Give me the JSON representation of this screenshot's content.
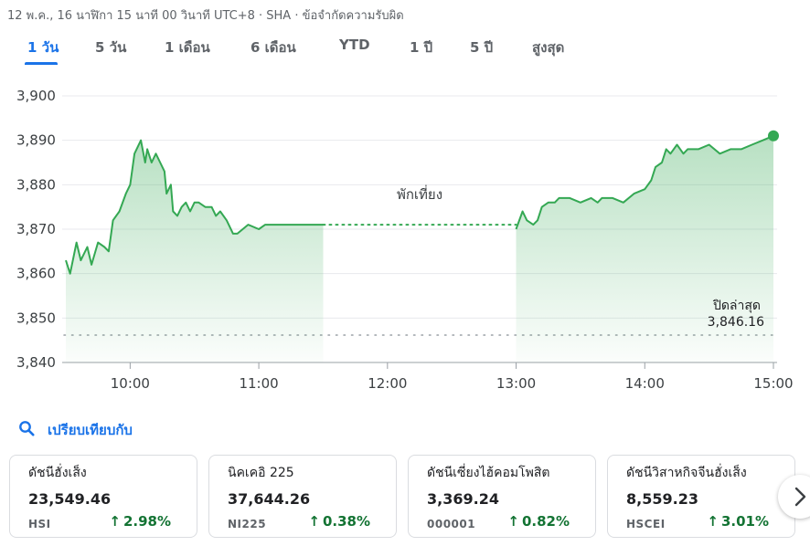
{
  "header": {
    "meta": "12 พ.ค., 16 นาฬิกา 15 นาที 00 วินาที UTC+8 · SHA · ข้อจำกัดความรับผิด"
  },
  "tabs": [
    {
      "label": "1 วัน",
      "active": true
    },
    {
      "label": "5 วัน",
      "active": false
    },
    {
      "label": "1 เดือน",
      "active": false
    },
    {
      "label": "6 เดือน",
      "active": false
    },
    {
      "label": "YTD",
      "active": false
    },
    {
      "label": "1 ปี",
      "active": false
    },
    {
      "label": "5 ปี",
      "active": false
    },
    {
      "label": "สูงสุด",
      "active": false
    }
  ],
  "chart_data": {
    "type": "area",
    "y_ticks": [
      "3,900",
      "3,890",
      "3,880",
      "3,870",
      "3,860",
      "3,850",
      "3,840"
    ],
    "x_ticks": [
      "10:00",
      "11:00",
      "12:00",
      "13:00",
      "14:00",
      "15:00"
    ],
    "ylim": [
      3840,
      3900
    ],
    "xlim": [
      "09:30",
      "15:00"
    ],
    "grid": true,
    "break_label": "พักเที่ยง",
    "break_range": [
      "11:30",
      "13:00"
    ],
    "previous_close": {
      "label": "ปิดล่าสุด",
      "value": "3,846.16",
      "y": 3846.16
    },
    "line_color": "#34a853",
    "series": [
      {
        "x": [
          "09:30",
          "09:32",
          "09:35",
          "09:37",
          "09:40",
          "09:42",
          "09:45",
          "09:48",
          "09:50",
          "09:52",
          "09:55",
          "09:58",
          "10:00",
          "10:02",
          "10:05",
          "10:07",
          "10:08",
          "10:10",
          "10:12",
          "10:14",
          "10:16",
          "10:17",
          "10:19",
          "10:20",
          "10:22",
          "10:24",
          "10:26",
          "10:28",
          "10:30",
          "10:32",
          "10:35",
          "10:38",
          "10:40",
          "10:42",
          "10:45",
          "10:48",
          "10:50",
          "10:55",
          "11:00",
          "11:03",
          "11:05",
          "11:08",
          "11:10",
          "11:12",
          "11:15",
          "11:18",
          "11:20",
          "11:25",
          "11:28",
          "11:30"
        ],
        "values": [
          3863,
          3860,
          3867,
          3863,
          3866,
          3862,
          3867,
          3866,
          3865,
          3872,
          3874,
          3878,
          3880,
          3887,
          3890,
          3885,
          3888,
          3885,
          3887,
          3885,
          3883,
          3878,
          3880,
          3874,
          3873,
          3875,
          3876,
          3874,
          3876,
          3876,
          3875,
          3875,
          3873,
          3874,
          3872,
          3869,
          3869,
          3871,
          3870,
          3871,
          3871,
          3871,
          3871,
          3871,
          3871,
          3871,
          3871,
          3871,
          3871,
          3871
        ]
      },
      {
        "x": [
          "13:00",
          "13:03",
          "13:05",
          "13:08",
          "13:10",
          "13:12",
          "13:15",
          "13:18",
          "13:20",
          "13:25",
          "13:30",
          "13:35",
          "13:38",
          "13:40",
          "13:45",
          "13:50",
          "13:55",
          "14:00",
          "14:03",
          "14:05",
          "14:08",
          "14:10",
          "14:12",
          "14:15",
          "14:18",
          "14:20",
          "14:25",
          "14:30",
          "14:35",
          "14:40",
          "14:45",
          "14:50",
          "14:55",
          "15:00"
        ],
        "values": [
          3870,
          3874,
          3872,
          3871,
          3872,
          3875,
          3876,
          3876,
          3877,
          3877,
          3876,
          3877,
          3876,
          3877,
          3877,
          3876,
          3878,
          3879,
          3881,
          3884,
          3885,
          3888,
          3887,
          3889,
          3887,
          3888,
          3888,
          3889,
          3887,
          3888,
          3888,
          3889,
          3890,
          3891
        ]
      }
    ]
  },
  "compare": {
    "label": "เปรียบเทียบกับ"
  },
  "cards": [
    {
      "name": "ดัชนีฮั่งเส็ง",
      "value": "23,549.46",
      "symbol": "HSI",
      "change": "2.98%"
    },
    {
      "name": "นิคเคอิ 225",
      "value": "37,644.26",
      "symbol": "NI225",
      "change": "0.38%"
    },
    {
      "name": "ดัชนีเซี่ยงไฮ้คอมโพสิต",
      "value": "3,369.24",
      "symbol": "000001",
      "change": "0.82%"
    },
    {
      "name": "ดัชนีวิสาหกิจจีนฮั่งเส็ง",
      "value": "8,559.23",
      "symbol": "HSCEI",
      "change": "3.01%"
    }
  ],
  "icons": {
    "compare": "search-icon",
    "next": "chevron-right-icon",
    "up": "arrow-up-icon"
  },
  "colors": {
    "accent": "#1a73e8",
    "positive": "#137333",
    "line": "#34a853"
  }
}
